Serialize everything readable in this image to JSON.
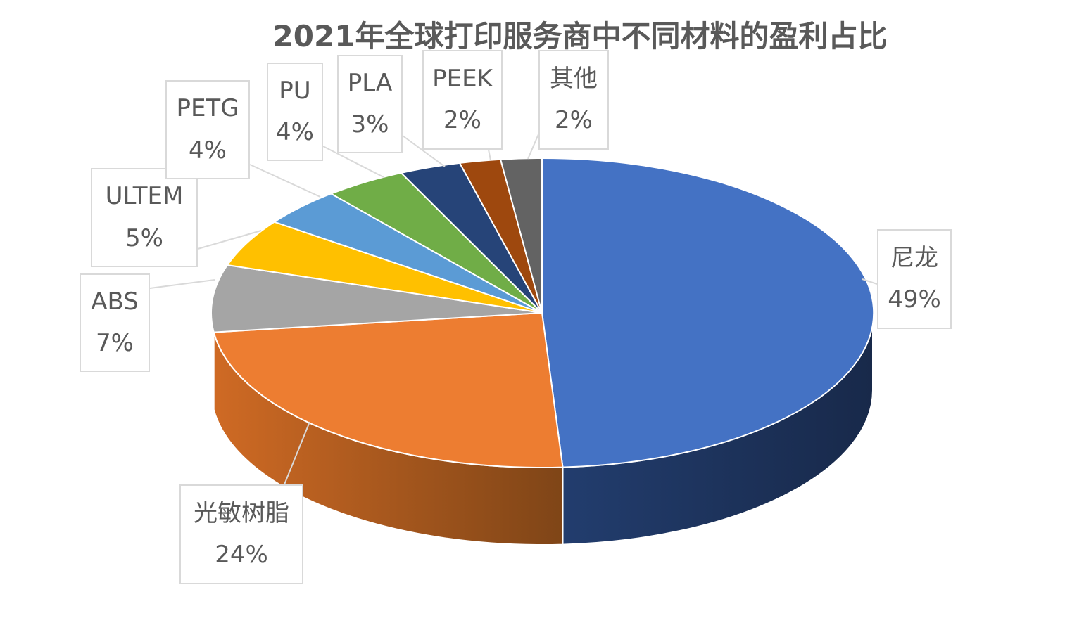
{
  "chart_data": {
    "type": "pie",
    "title": "2021年全球打印服务商中不同材料的盈利占比",
    "categories": [
      "尼龙",
      "光敏树脂",
      "ABS",
      "ULTEM",
      "PETG",
      "PU",
      "PLA",
      "PEEK",
      "其他"
    ],
    "values": [
      49,
      24,
      7,
      5,
      4,
      4,
      3,
      2,
      2
    ],
    "value_labels": [
      "49%",
      "24%",
      "7%",
      "5%",
      "4%",
      "4%",
      "3%",
      "2%",
      "2%"
    ],
    "colors": [
      "#4472c4",
      "#ed7d31",
      "#a5a5a5",
      "#ffc000",
      "#5b9bd5",
      "#70ad47",
      "#264478",
      "#9e480e",
      "#636363"
    ],
    "style": "3d-pie",
    "legend": "none",
    "data_labels": "callouts"
  }
}
